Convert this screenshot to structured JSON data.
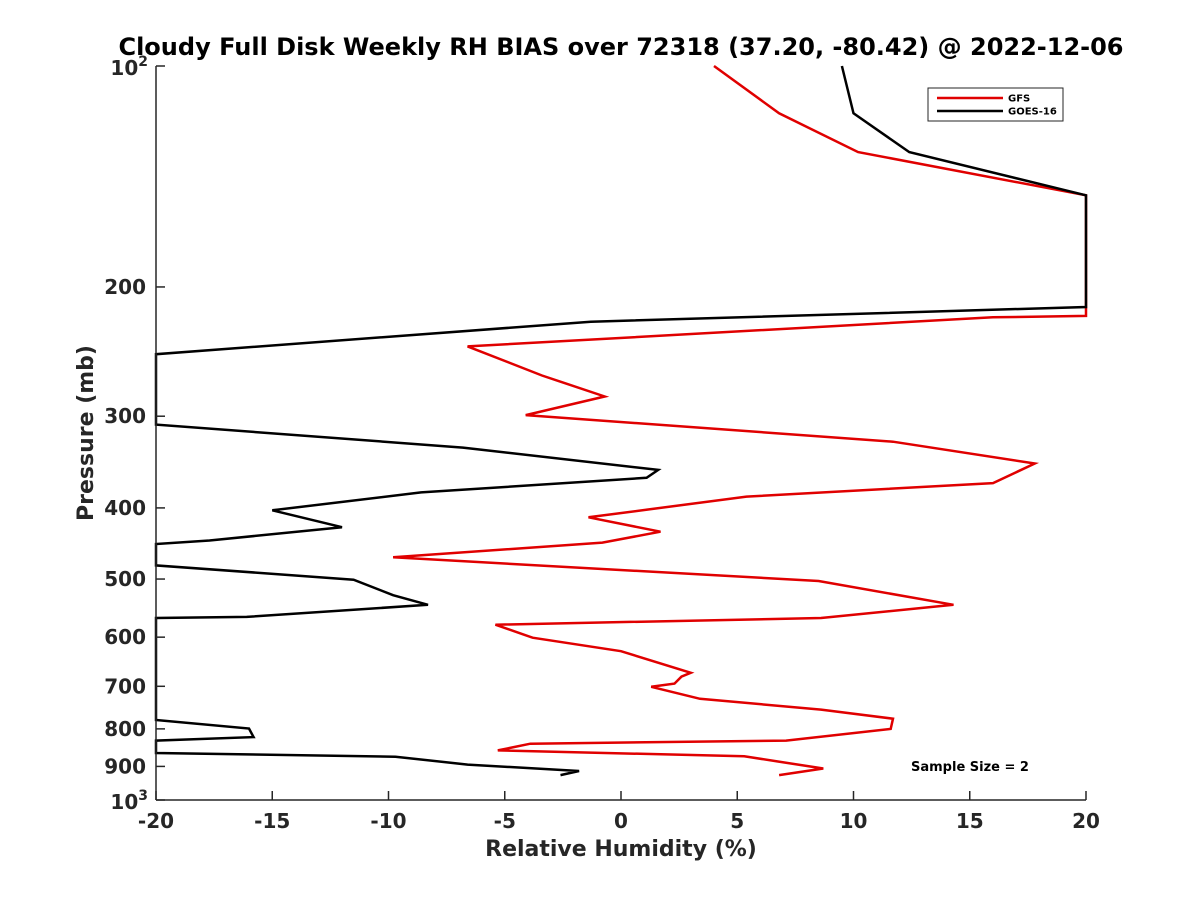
{
  "chart_data": {
    "type": "line",
    "title": "Cloudy Full Disk Weekly RH BIAS over 72318 (37.20, -80.42) @ 2022-12-06",
    "xlabel": "Relative Humidity (%)",
    "ylabel": "Pressure (mb)",
    "xlim": [
      -20,
      20
    ],
    "ylim": [
      100,
      1000
    ],
    "yscale": "log",
    "x_ticks": [
      -20,
      -15,
      -10,
      -5,
      0,
      5,
      10,
      15,
      20
    ],
    "y_ticks": [
      {
        "value": 100,
        "label": "10",
        "sup": "2"
      },
      {
        "value": 200,
        "label": "200"
      },
      {
        "value": 300,
        "label": "300"
      },
      {
        "value": 400,
        "label": "400"
      },
      {
        "value": 500,
        "label": "500"
      },
      {
        "value": 600,
        "label": "600"
      },
      {
        "value": 700,
        "label": "700"
      },
      {
        "value": 800,
        "label": "800"
      },
      {
        "value": 900,
        "label": "900"
      },
      {
        "value": 1000,
        "label": "10",
        "sup": "3"
      }
    ],
    "legend": {
      "position": "top-right",
      "entries": [
        "GFS",
        "GOES-16"
      ]
    },
    "annotation": "Sample Size = 2",
    "series": [
      {
        "name": "GFS",
        "color": "#e00000",
        "points": [
          [
            4.0,
            100
          ],
          [
            6.8,
            116
          ],
          [
            10.2,
            131
          ],
          [
            20,
            150
          ],
          [
            20,
            219
          ],
          [
            16.0,
            220
          ],
          [
            -6.6,
            241
          ],
          [
            -3.4,
            264
          ],
          [
            -0.7,
            282
          ],
          [
            -4.1,
            299
          ],
          [
            11.7,
            325
          ],
          [
            17.8,
            348
          ],
          [
            16.0,
            370
          ],
          [
            5.4,
            386
          ],
          [
            -1.4,
            412
          ],
          [
            1.7,
            431
          ],
          [
            -0.8,
            446
          ],
          [
            -9.8,
            467
          ],
          [
            8.5,
            503
          ],
          [
            14.3,
            542
          ],
          [
            8.6,
            565
          ],
          [
            -5.4,
            577
          ],
          [
            -3.8,
            601
          ],
          [
            0.0,
            627
          ],
          [
            3.0,
            671
          ],
          [
            2.6,
            679
          ],
          [
            2.3,
            694
          ],
          [
            1.3,
            701
          ],
          [
            3.4,
            728
          ],
          [
            8.6,
            753
          ],
          [
            11.7,
            775
          ],
          [
            11.6,
            800
          ],
          [
            7.1,
            830
          ],
          [
            -3.9,
            838
          ],
          [
            -5.3,
            856
          ],
          [
            5.3,
            872
          ],
          [
            8.7,
            906
          ],
          [
            6.8,
            925
          ]
        ]
      },
      {
        "name": "GOES-16",
        "color": "#000000",
        "points": [
          [
            9.5,
            100
          ],
          [
            10.0,
            116
          ],
          [
            12.4,
            131
          ],
          [
            20,
            150
          ],
          [
            20,
            213
          ],
          [
            -1.3,
            223
          ],
          [
            -20,
            247
          ],
          [
            -20,
            308
          ],
          [
            -6.8,
            331
          ],
          [
            1.6,
            355
          ],
          [
            1.1,
            364
          ],
          [
            -8.6,
            381
          ],
          [
            -15.0,
            403
          ],
          [
            -12.0,
            425
          ],
          [
            -17.7,
            443
          ],
          [
            -20,
            448
          ],
          [
            -20,
            479
          ],
          [
            -11.5,
            501
          ],
          [
            -9.8,
            526
          ],
          [
            -8.3,
            542
          ],
          [
            -16.1,
            563
          ],
          [
            -20,
            565
          ],
          [
            -20,
            778
          ],
          [
            -16.0,
            799
          ],
          [
            -15.8,
            821
          ],
          [
            -20,
            830
          ],
          [
            -20,
            863
          ],
          [
            -9.7,
            873
          ],
          [
            -6.6,
            895
          ],
          [
            -1.8,
            913
          ],
          [
            -2.6,
            925
          ]
        ]
      }
    ]
  }
}
